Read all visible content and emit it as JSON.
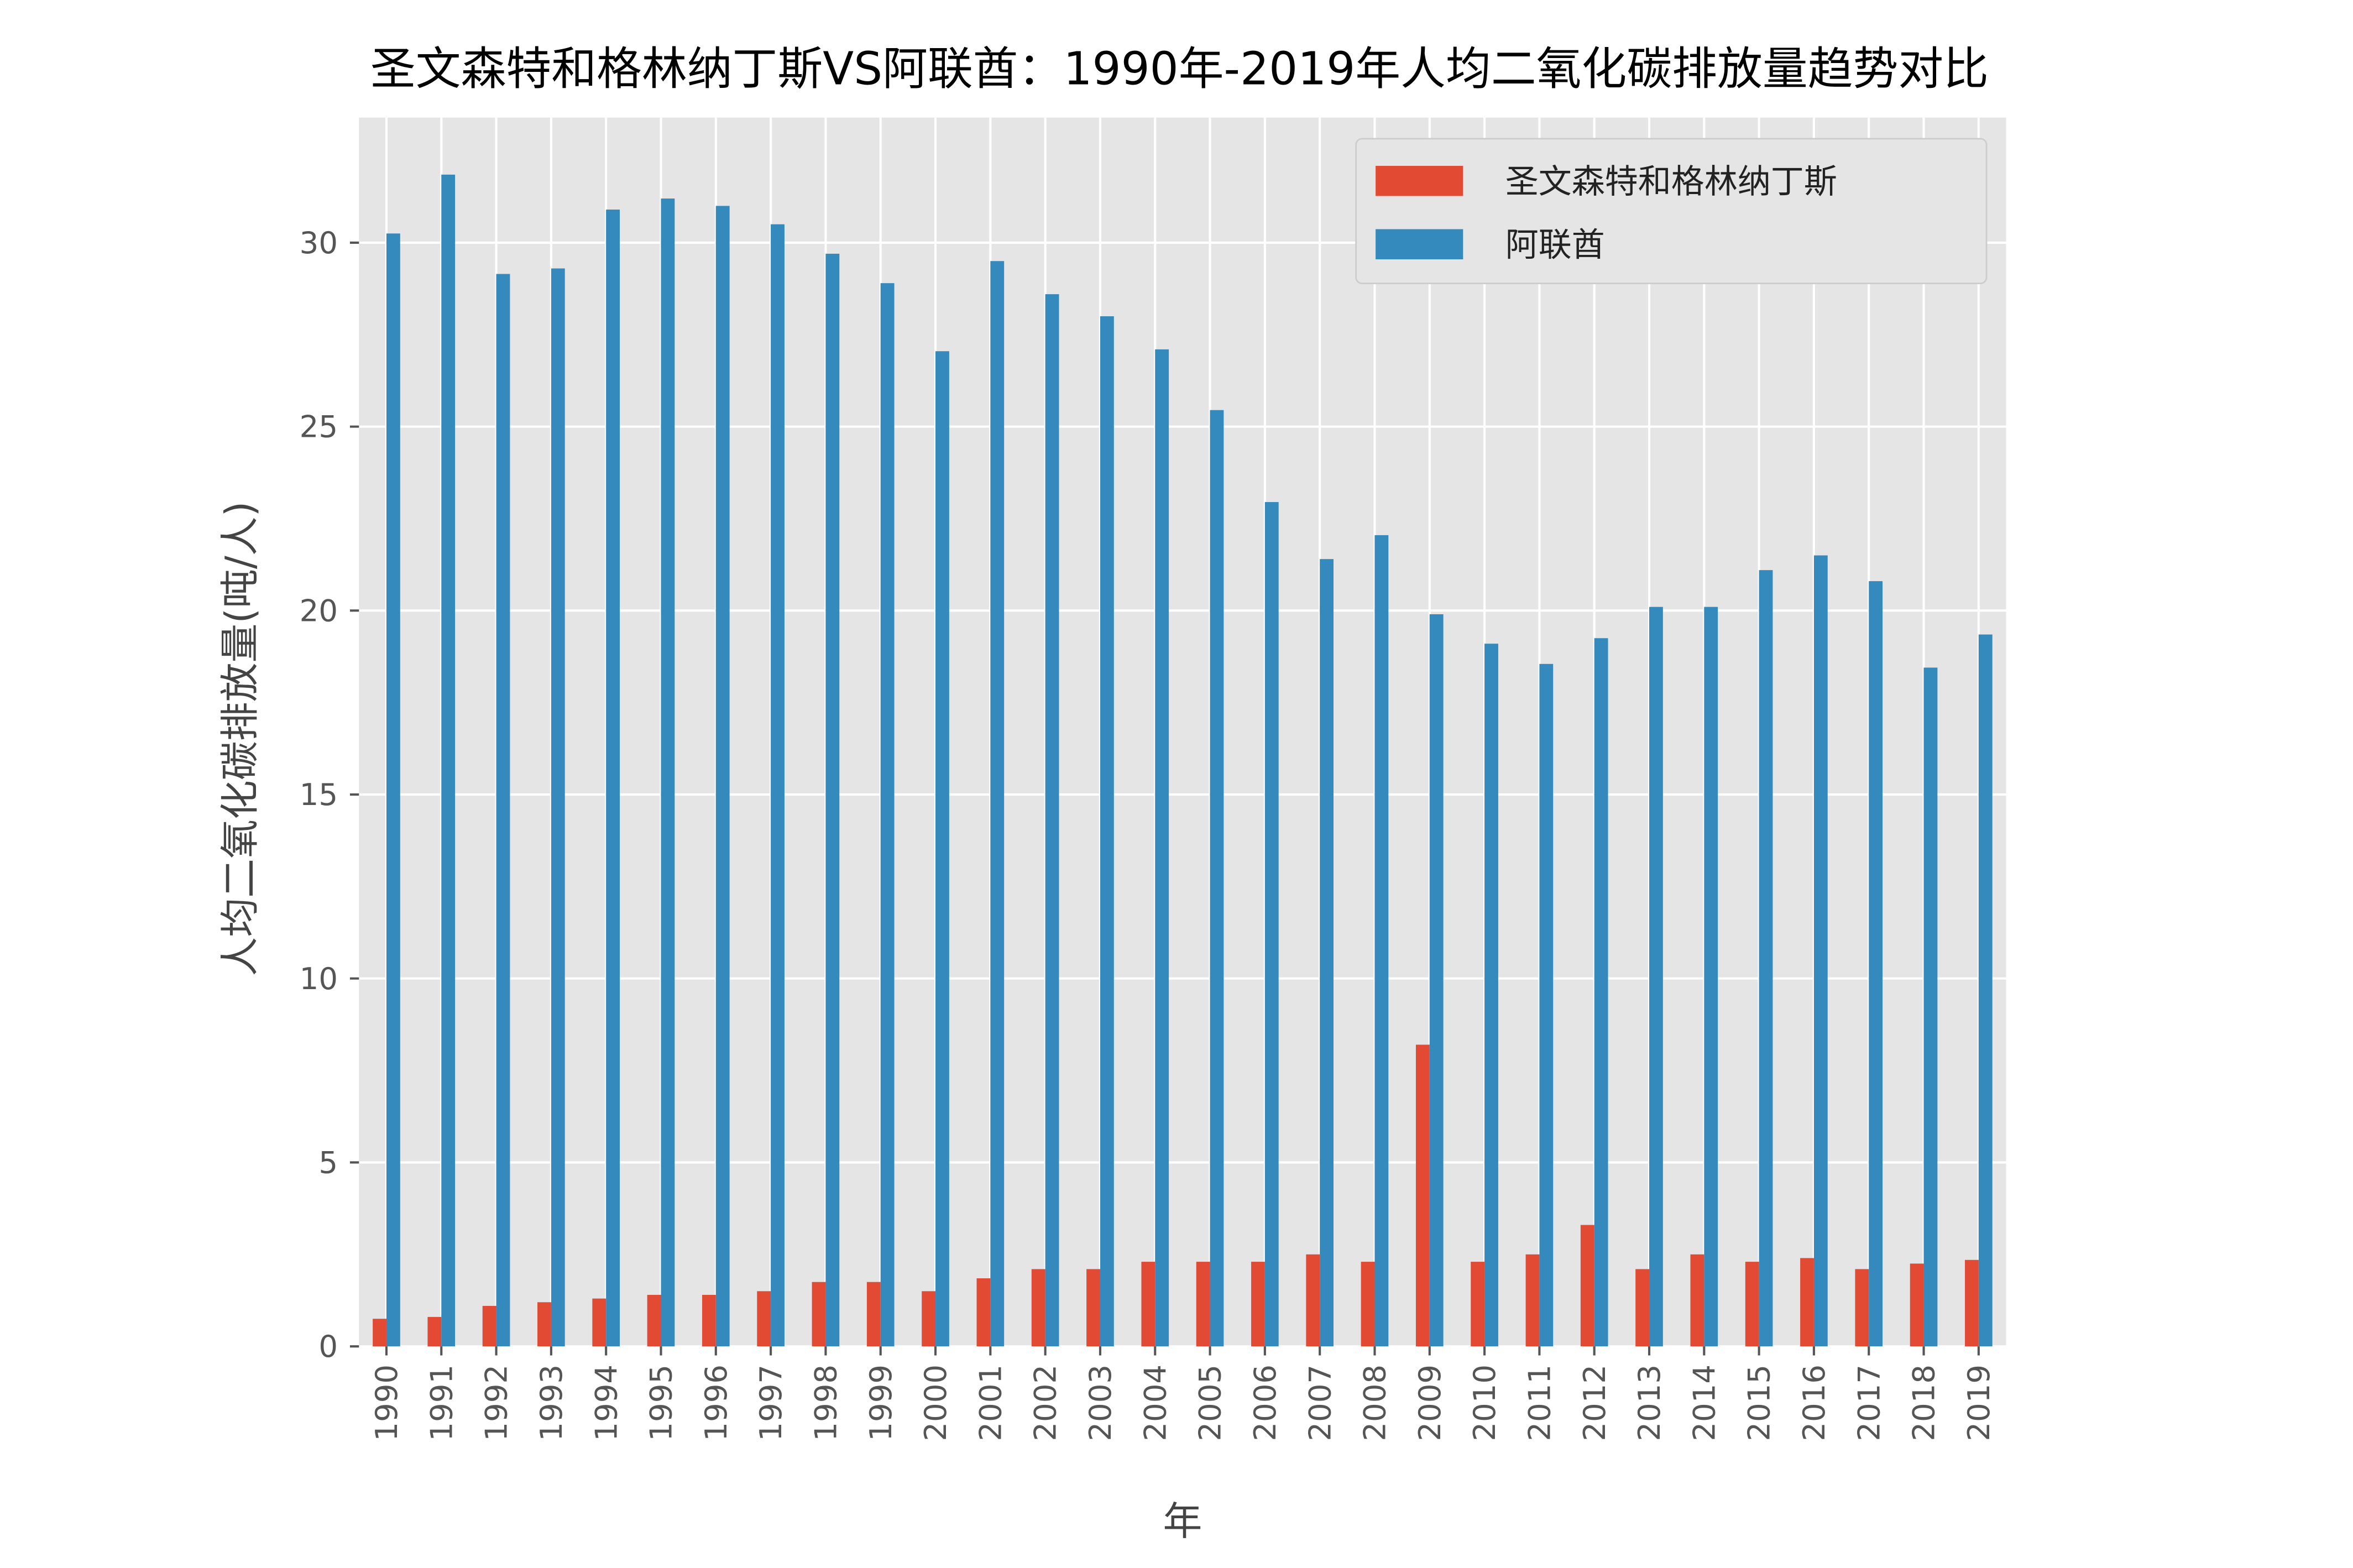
{
  "chart_data": {
    "type": "bar",
    "title": "圣文森特和格林纳丁斯VS阿联酋：1990年-2019年人均二氧化碳排放量趋势对比",
    "xlabel": "年",
    "ylabel": "人均二氧化碳排放量(吨/人)",
    "ylim": [
      0,
      33.4
    ],
    "yticks": [
      0,
      5,
      10,
      15,
      20,
      25,
      30
    ],
    "grid": true,
    "legend_position": "top-right",
    "categories": [
      "1990",
      "1991",
      "1992",
      "1993",
      "1994",
      "1995",
      "1996",
      "1997",
      "1998",
      "1999",
      "2000",
      "2001",
      "2002",
      "2003",
      "2004",
      "2005",
      "2006",
      "2007",
      "2008",
      "2009",
      "2010",
      "2011",
      "2012",
      "2013",
      "2014",
      "2015",
      "2016",
      "2017",
      "2018",
      "2019"
    ],
    "series": [
      {
        "name": "圣文森特和格林纳丁斯",
        "color": "#E24A33",
        "values": [
          0.75,
          0.8,
          1.1,
          1.2,
          1.3,
          1.4,
          1.4,
          1.5,
          1.75,
          1.75,
          1.5,
          1.85,
          2.1,
          2.1,
          2.3,
          2.3,
          2.3,
          2.5,
          2.3,
          8.2,
          2.3,
          2.5,
          3.3,
          2.1,
          2.5,
          2.3,
          2.4,
          2.1,
          2.25,
          2.35
        ]
      },
      {
        "name": "阿联酋",
        "color": "#348ABD",
        "values": [
          30.25,
          31.85,
          29.15,
          29.3,
          30.9,
          31.2,
          31.0,
          30.5,
          29.7,
          28.9,
          27.05,
          29.5,
          28.6,
          28.0,
          27.1,
          25.45,
          22.95,
          21.4,
          22.05,
          19.9,
          19.1,
          18.55,
          19.25,
          20.1,
          20.1,
          21.1,
          21.5,
          20.8,
          18.45,
          19.35
        ]
      }
    ]
  }
}
